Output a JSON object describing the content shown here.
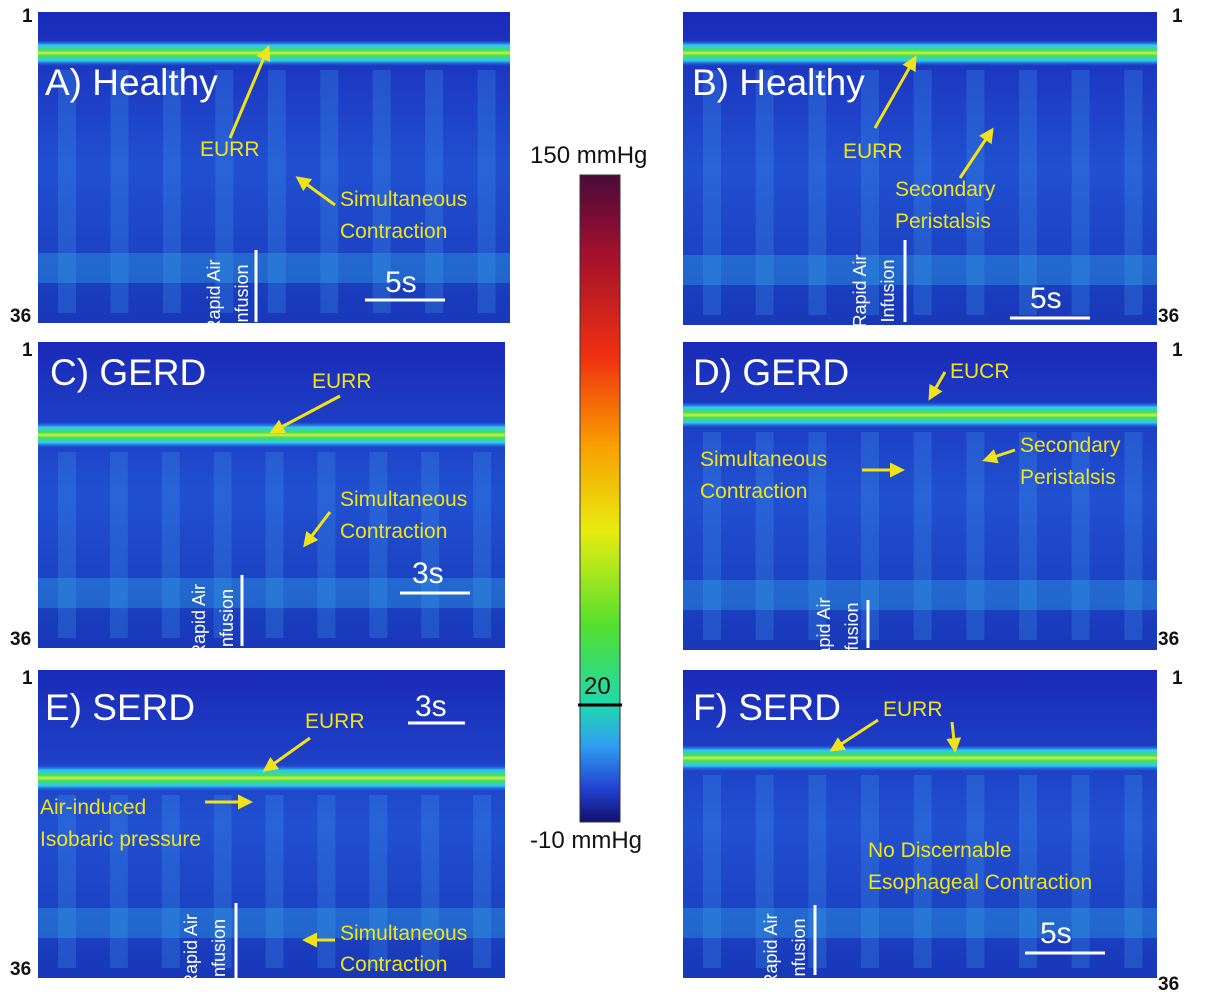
{
  "panels": [
    {
      "label": "A) Healthy",
      "row_top": "1",
      "row_bottom": "36",
      "time_scale": "5s",
      "infusion_label": [
        "Rapid Air",
        "Infusion"
      ],
      "annotations": [
        [
          "EURR"
        ],
        [
          "Simultaneous",
          "Contraction"
        ]
      ]
    },
    {
      "label": "B) Healthy",
      "row_top": "1",
      "row_bottom": "36",
      "time_scale": "5s",
      "infusion_label": [
        "Rapid Air",
        "Infusion"
      ],
      "annotations": [
        [
          "EURR"
        ],
        [
          "Secondary",
          "Peristalsis"
        ]
      ]
    },
    {
      "label": "C) GERD",
      "row_top": "1",
      "row_bottom": "36",
      "time_scale": "3s",
      "infusion_label": [
        "Rapid Air",
        "Infusion"
      ],
      "annotations": [
        [
          "EURR"
        ],
        [
          "Simultaneous",
          "Contraction"
        ]
      ]
    },
    {
      "label": "D) GERD",
      "row_top": "1",
      "row_bottom": "36",
      "infusion_label": [
        "Rapid Air",
        "Infusion"
      ],
      "annotations": [
        [
          "EUCR"
        ],
        [
          "Secondary",
          "Peristalsis"
        ],
        [
          "Simultaneous",
          "Contraction"
        ]
      ]
    },
    {
      "label": "E) SERD",
      "row_top": "1",
      "row_bottom": "36",
      "time_scale": "3s",
      "infusion_label": [
        "Rapid Air",
        "Infusion"
      ],
      "annotations": [
        [
          "EURR"
        ],
        [
          "Air-induced",
          "Isobaric pressure"
        ],
        [
          "Simultaneous",
          "Contraction"
        ]
      ]
    },
    {
      "label": "F) SERD",
      "row_top": "1",
      "row_bottom": "36",
      "time_scale": "5s",
      "infusion_label": [
        "Rapid Air",
        "Infusion"
      ],
      "annotations": [
        [
          "EURR"
        ],
        [
          "No Discernable",
          "Esophageal Contraction"
        ]
      ]
    }
  ],
  "colorbar": {
    "max_label": "150 mmHg",
    "mid_label": "20",
    "min_label": "-10 mmHg"
  }
}
